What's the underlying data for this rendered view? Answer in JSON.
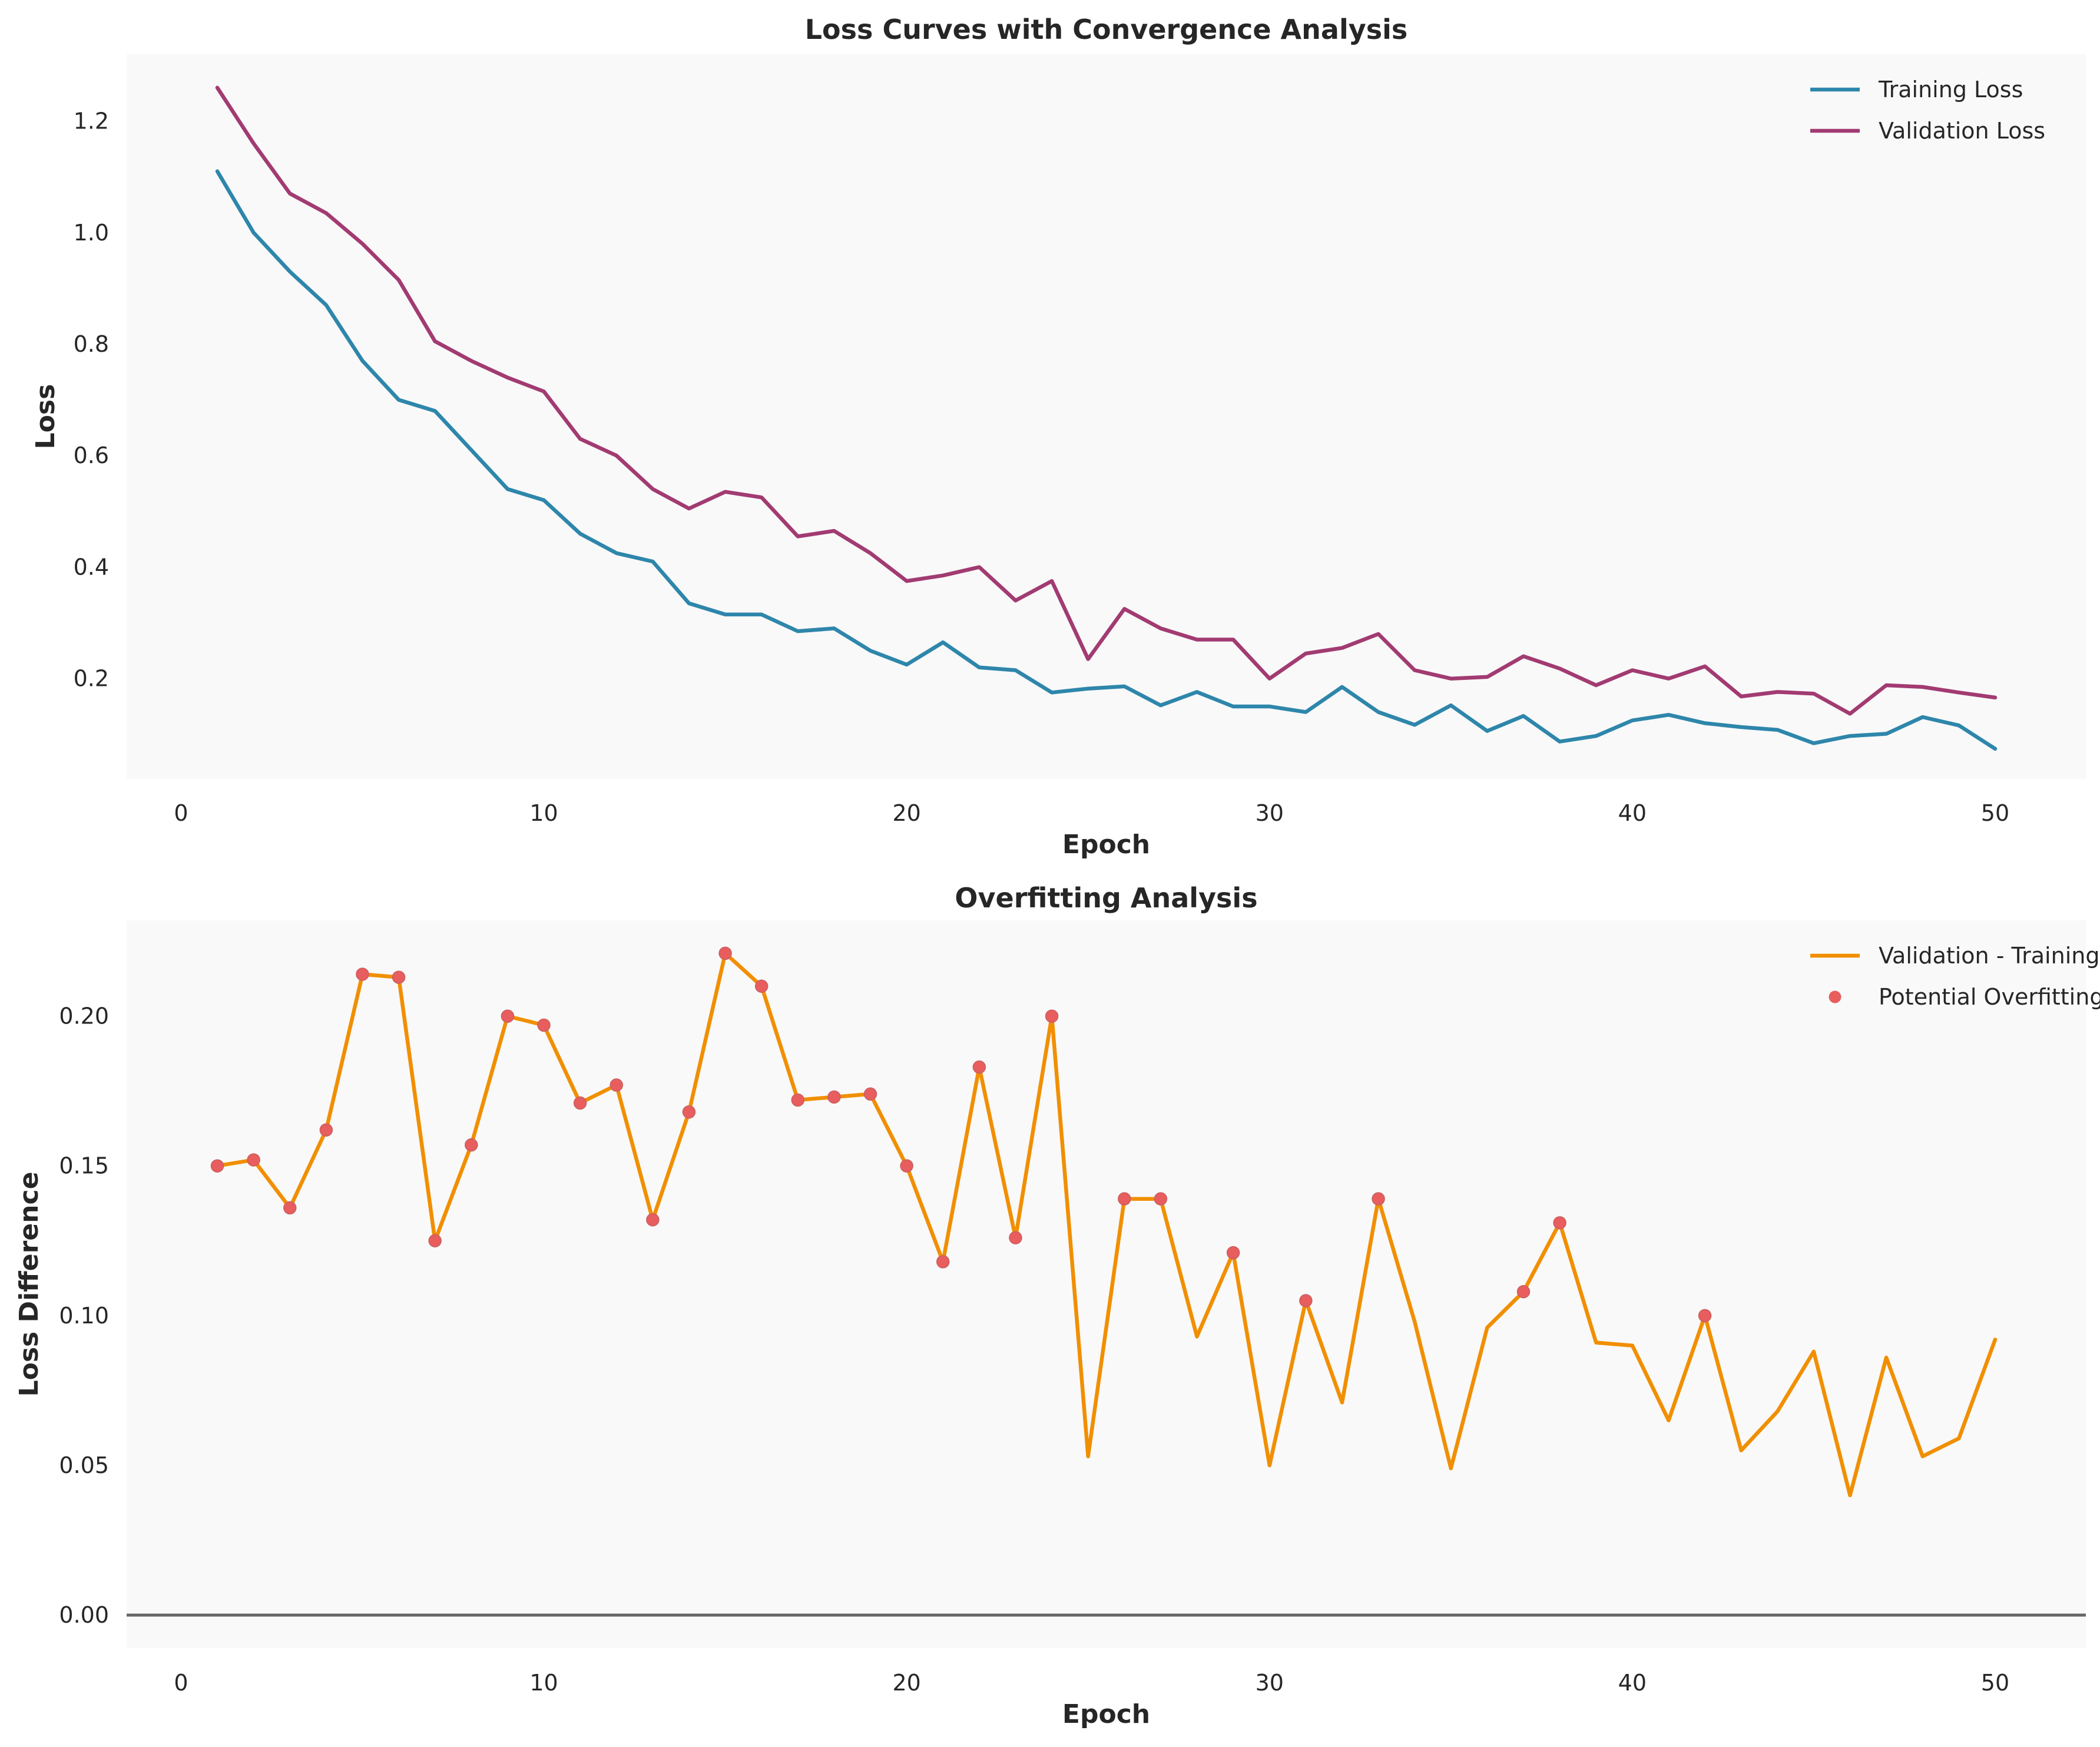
{
  "chart_data": [
    {
      "type": "line",
      "title": "Loss Curves with Convergence Analysis",
      "xlabel": "Epoch",
      "ylabel": "Loss",
      "xlim": [
        -1.5,
        52.5
      ],
      "ylim": [
        0.02,
        1.32
      ],
      "xticks": [
        0,
        10,
        20,
        30,
        40,
        50
      ],
      "yticks": [
        0.2,
        0.4,
        0.6,
        0.8,
        1.0,
        1.2
      ],
      "ytick_decimals": 1,
      "grid": false,
      "legend": "top-right",
      "x": [
        1,
        2,
        3,
        4,
        5,
        6,
        7,
        8,
        9,
        10,
        11,
        12,
        13,
        14,
        15,
        16,
        17,
        18,
        19,
        20,
        21,
        22,
        23,
        24,
        25,
        26,
        27,
        28,
        29,
        30,
        31,
        32,
        33,
        34,
        35,
        36,
        37,
        38,
        39,
        40,
        41,
        42,
        43,
        44,
        45,
        46,
        47,
        48,
        49,
        50
      ],
      "series": [
        {
          "name": "Training Loss",
          "color": "#2e86ab",
          "values": [
            1.11,
            1.0,
            0.93,
            0.87,
            0.77,
            0.7,
            0.68,
            0.61,
            0.54,
            0.52,
            0.46,
            0.425,
            0.41,
            0.335,
            0.315,
            0.315,
            0.285,
            0.29,
            0.25,
            0.225,
            0.265,
            0.22,
            0.215,
            0.175,
            0.182,
            0.186,
            0.152,
            0.176,
            0.15,
            0.15,
            0.14,
            0.185,
            0.14,
            0.117,
            0.152,
            0.106,
            0.133,
            0.087,
            0.097,
            0.125,
            0.135,
            0.12,
            0.113,
            0.108,
            0.084,
            0.097,
            0.101,
            0.131,
            0.116,
            0.074
          ]
        },
        {
          "name": "Validation Loss",
          "color": "#a23b72",
          "values": [
            1.26,
            1.16,
            1.07,
            1.035,
            0.98,
            0.915,
            0.805,
            0.77,
            0.74,
            0.715,
            0.63,
            0.6,
            0.54,
            0.505,
            0.535,
            0.525,
            0.455,
            0.465,
            0.425,
            0.375,
            0.385,
            0.4,
            0.34,
            0.375,
            0.235,
            0.325,
            0.29,
            0.27,
            0.27,
            0.2,
            0.245,
            0.255,
            0.28,
            0.215,
            0.2,
            0.203,
            0.24,
            0.218,
            0.188,
            0.215,
            0.2,
            0.222,
            0.168,
            0.176,
            0.173,
            0.137,
            0.188,
            0.185,
            0.175,
            0.166
          ]
        }
      ]
    },
    {
      "type": "line",
      "title": "Overfitting Analysis",
      "xlabel": "Epoch",
      "ylabel": "Loss Difference",
      "xlim": [
        -1.5,
        52.5
      ],
      "ylim": [
        -0.011,
        0.232
      ],
      "xticks": [
        0,
        10,
        20,
        30,
        40,
        50
      ],
      "yticks": [
        0.0,
        0.05,
        0.1,
        0.15,
        0.2
      ],
      "ytick_decimals": 2,
      "grid": false,
      "legend": "top-right",
      "reference_line": {
        "y": 0,
        "color": "#666666"
      },
      "x": [
        1,
        2,
        3,
        4,
        5,
        6,
        7,
        8,
        9,
        10,
        11,
        12,
        13,
        14,
        15,
        16,
        17,
        18,
        19,
        20,
        21,
        22,
        23,
        24,
        25,
        26,
        27,
        28,
        29,
        30,
        31,
        32,
        33,
        34,
        35,
        36,
        37,
        38,
        39,
        40,
        41,
        42,
        43,
        44,
        45,
        46,
        47,
        48,
        49,
        50
      ],
      "series": [
        {
          "name": "Validation - Training",
          "color": "#f18f01",
          "values": [
            0.15,
            0.152,
            0.136,
            0.162,
            0.214,
            0.213,
            0.125,
            0.157,
            0.2,
            0.197,
            0.171,
            0.177,
            0.132,
            0.168,
            0.221,
            0.21,
            0.172,
            0.173,
            0.174,
            0.15,
            0.118,
            0.183,
            0.126,
            0.2,
            0.053,
            0.139,
            0.139,
            0.093,
            0.121,
            0.05,
            0.105,
            0.071,
            0.139,
            0.098,
            0.049,
            0.096,
            0.108,
            0.131,
            0.091,
            0.09,
            0.065,
            0.1,
            0.055,
            0.068,
            0.088,
            0.04,
            0.086,
            0.053,
            0.059,
            0.092
          ]
        },
        {
          "name": "Potential Overfitting",
          "type": "scatter",
          "color": "#e85d5d",
          "x": [
            1,
            2,
            3,
            4,
            5,
            6,
            7,
            8,
            9,
            10,
            11,
            12,
            13,
            14,
            15,
            16,
            17,
            18,
            19,
            20,
            21,
            22,
            23,
            24,
            26,
            27,
            29,
            31,
            33,
            37,
            38,
            42
          ],
          "values": [
            0.15,
            0.152,
            0.136,
            0.162,
            0.214,
            0.213,
            0.125,
            0.157,
            0.2,
            0.197,
            0.171,
            0.177,
            0.132,
            0.168,
            0.221,
            0.21,
            0.172,
            0.173,
            0.174,
            0.15,
            0.118,
            0.183,
            0.126,
            0.2,
            0.139,
            0.139,
            0.121,
            0.105,
            0.139,
            0.108,
            0.131,
            0.1
          ]
        }
      ]
    }
  ]
}
